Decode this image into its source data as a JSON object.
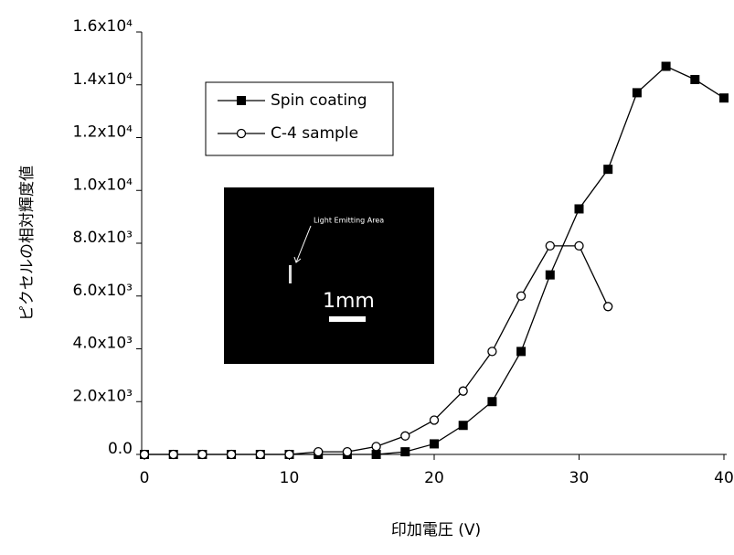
{
  "chart_data": {
    "type": "line",
    "x_label": "印加電圧 (V)",
    "y_label": "ピクセルの相対輝度値",
    "xlim": [
      0,
      40
    ],
    "xticks": [
      0,
      10,
      20,
      30,
      40
    ],
    "ylim": [
      0,
      16000
    ],
    "yticks": [
      {
        "value": 0,
        "label": "0.0"
      },
      {
        "value": 2000,
        "label": "2.0x10³"
      },
      {
        "value": 4000,
        "label": "4.0x10³"
      },
      {
        "value": 6000,
        "label": "6.0x10³"
      },
      {
        "value": 8000,
        "label": "8.0x10³"
      },
      {
        "value": 10000,
        "label": "1.0x10⁴"
      },
      {
        "value": 12000,
        "label": "1.2x10⁴"
      },
      {
        "value": 14000,
        "label": "1.4x10⁴"
      },
      {
        "value": 16000,
        "label": "1.6x10⁴"
      }
    ],
    "legend": "upper-left",
    "series": [
      {
        "name": "Spin coating",
        "color": "#000000",
        "marker": "filled-square",
        "x": [
          0,
          2,
          4,
          6,
          8,
          10,
          12,
          14,
          16,
          18,
          20,
          22,
          24,
          26,
          28,
          30,
          32,
          34,
          36,
          38,
          40
        ],
        "values": [
          0,
          0,
          0,
          0,
          0,
          0,
          0,
          0,
          0,
          100,
          400,
          1100,
          2000,
          3900,
          6800,
          9300,
          10800,
          13700,
          14700,
          14200,
          13500
        ]
      },
      {
        "name": "C-4 sample",
        "color": "#000000",
        "marker": "open-circle",
        "x": [
          0,
          2,
          4,
          6,
          8,
          10,
          12,
          14,
          16,
          18,
          20,
          22,
          24,
          26,
          28,
          30,
          32
        ],
        "values": [
          0,
          0,
          0,
          0,
          0,
          0,
          100,
          100,
          300,
          700,
          1300,
          2400,
          3900,
          6000,
          7900,
          7900,
          5600
        ]
      }
    ],
    "inset": {
      "annotation": "Light Emitting Area",
      "scale_label": "1mm"
    }
  }
}
